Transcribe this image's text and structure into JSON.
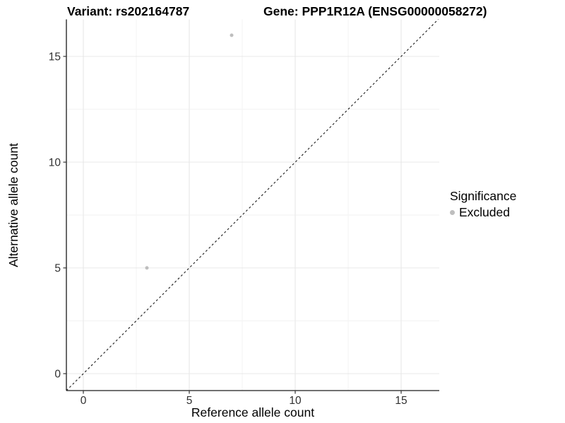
{
  "figure": {
    "title_variant": "Variant: rs202164787",
    "title_gene": "Gene: PPP1R12A (ENSG00000058272)"
  },
  "legend": {
    "title": "Significance",
    "items": [
      {
        "label": "Excluded",
        "color": "#bebebe"
      }
    ]
  },
  "chart_data": {
    "type": "scatter",
    "title": "Variant: rs202164787    Gene: PPP1R12A (ENSG00000058272)",
    "xlabel": "Reference allele count",
    "ylabel": "Alternative allele count",
    "xlim": [
      -0.8,
      16.8
    ],
    "ylim": [
      -0.8,
      16.75
    ],
    "x_ticks": [
      0,
      5,
      10,
      15
    ],
    "y_ticks": [
      0,
      5,
      10,
      15
    ],
    "x_minor_ticks": [
      2.5,
      7.5,
      12.5
    ],
    "y_minor_ticks": [
      2.5,
      7.5,
      12.5
    ],
    "grid": "major+minor",
    "legend_position": "right",
    "series": [
      {
        "name": "Excluded",
        "color": "#bebebe",
        "marker": "circle",
        "points": [
          {
            "x": 3,
            "y": 5
          },
          {
            "x": 7,
            "y": 16
          }
        ]
      }
    ],
    "reference_line": {
      "equation": "y = x",
      "style": "dashed",
      "color": "#1a1a1a"
    },
    "colors": {
      "grid_major": "#e8e8e8",
      "grid_minor": "#f2f2f2",
      "axis_line": "#1a1a1a",
      "tick_mark": "#333333",
      "tick_label": "#303030"
    }
  }
}
